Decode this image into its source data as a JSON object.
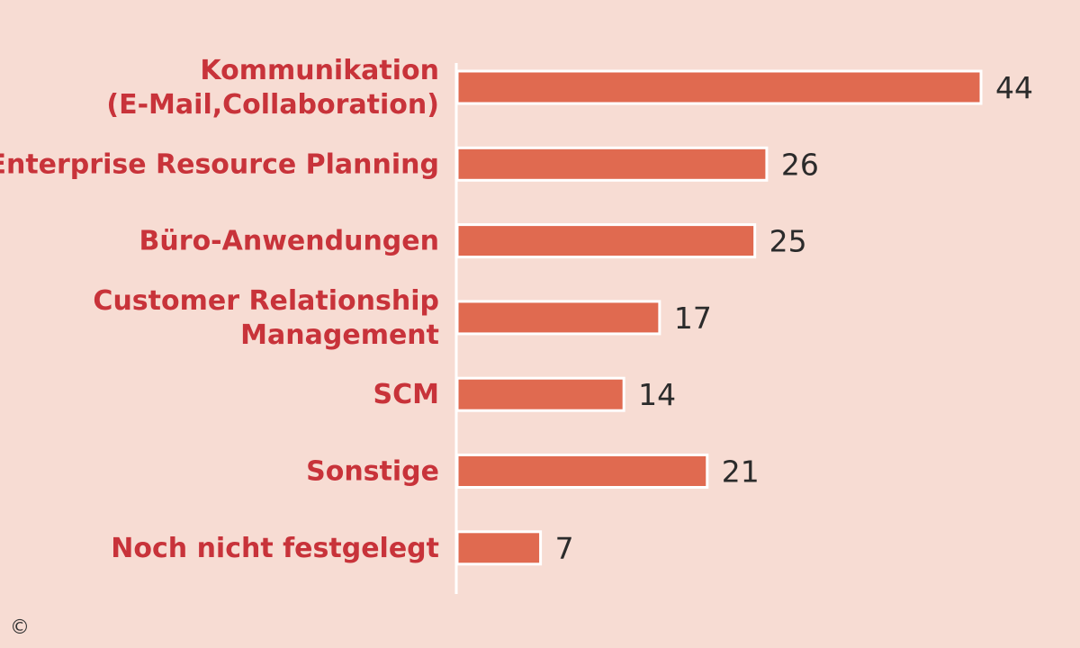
{
  "chart_data": {
    "type": "bar",
    "orientation": "horizontal",
    "categories": [
      [
        "Kommunikation",
        "(E-Mail,Collaboration)"
      ],
      [
        "Enterprise Resource Planning"
      ],
      [
        "Büro-Anwendungen"
      ],
      [
        "Customer Relationship",
        "Management"
      ],
      [
        "SCM"
      ],
      [
        "Sonstige"
      ],
      [
        "Noch nicht festgelegt"
      ]
    ],
    "values": [
      44,
      26,
      25,
      17,
      14,
      21,
      7
    ],
    "value_labels": [
      "44",
      "26",
      "25",
      "17",
      "14",
      "21",
      "7"
    ],
    "xlim": [
      0,
      44
    ],
    "grid": false,
    "legend": "none"
  },
  "colors": {
    "background": "#f7dcd3",
    "bar": "#e06a50",
    "bar_outline": "#ffffff",
    "category_text": "#c8333a",
    "value_text": "#2b2b2b",
    "axis": "#ffffff"
  },
  "footer": {
    "copyright_symbol": "©"
  }
}
